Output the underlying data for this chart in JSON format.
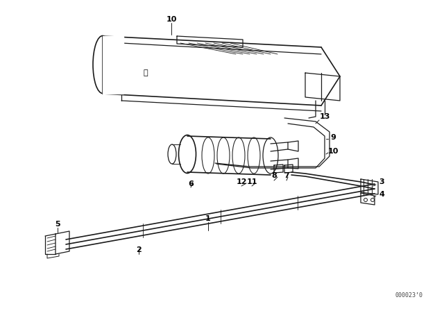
{
  "background_color": "#ffffff",
  "line_color": "#1a1a1a",
  "label_color": "#000000",
  "part_number_text": "000023’0",
  "figsize": [
    6.4,
    4.48
  ],
  "dpi": 100
}
